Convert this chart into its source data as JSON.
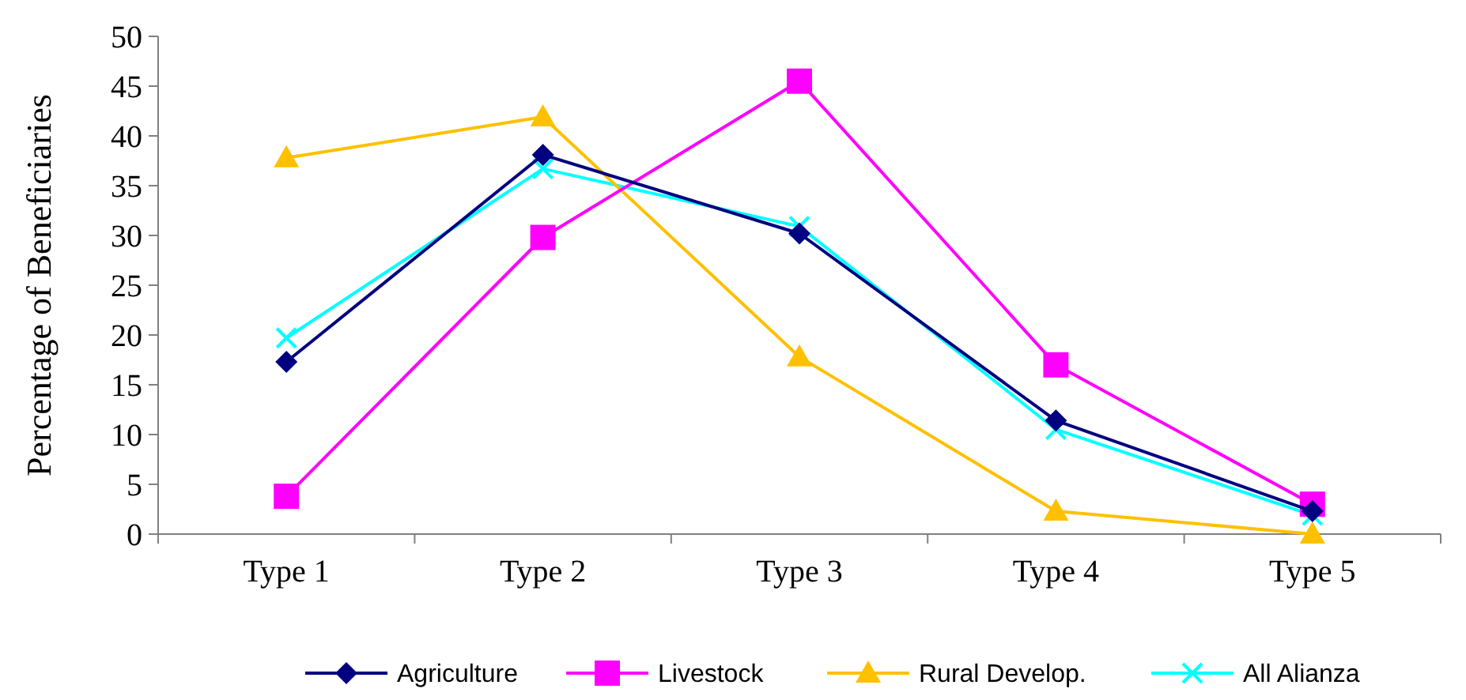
{
  "chart_data": {
    "type": "line",
    "ylabel": "Percentage of Beneficiaries",
    "categories": [
      "Type 1",
      "Type 2",
      "Type 3",
      "Type 4",
      "Type 5"
    ],
    "ylim": [
      0,
      50
    ],
    "yticks": [
      0,
      5,
      10,
      15,
      20,
      25,
      30,
      35,
      40,
      45,
      50
    ],
    "grid": false,
    "legend": "bottom",
    "series": [
      {
        "name": "Agriculture",
        "color": "#000080",
        "marker": "diamond",
        "values": [
          17.3,
          38.1,
          30.2,
          11.4,
          2.3
        ]
      },
      {
        "name": "Livestock",
        "color": "#ff00ff",
        "marker": "square",
        "values": [
          3.8,
          29.8,
          45.5,
          17.0,
          3.0
        ]
      },
      {
        "name": "Rural Develop.",
        "color": "#ffc000",
        "marker": "triangle",
        "values": [
          37.8,
          41.9,
          17.8,
          2.3,
          0
        ]
      },
      {
        "name": "All Alianza",
        "color": "#00ffff",
        "marker": "cross",
        "values": [
          19.7,
          36.7,
          30.9,
          10.5,
          1.9
        ]
      }
    ]
  }
}
